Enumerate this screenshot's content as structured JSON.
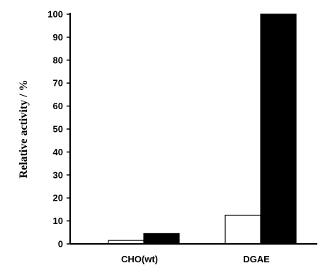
{
  "chart_data": {
    "type": "bar",
    "categories": [
      "CHO(wt)",
      "DGAE"
    ],
    "series": [
      {
        "fill": "#ffffff",
        "values": [
          1.5,
          12.5
        ]
      },
      {
        "fill": "#000000",
        "values": [
          4.5,
          100
        ]
      }
    ],
    "ylabel": "Relative activity / %",
    "xlabel": "",
    "ylim": [
      0,
      100
    ],
    "yticks": [
      0,
      10,
      20,
      30,
      40,
      50,
      60,
      70,
      80,
      90,
      100
    ],
    "grid": false,
    "legend": "none"
  }
}
